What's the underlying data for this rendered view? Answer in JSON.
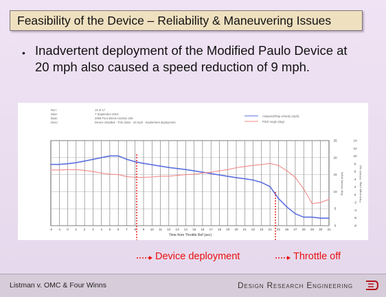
{
  "slide": {
    "title": "Feasibility of the Device – Reliability & Maneuvering Issues",
    "bullet": "Inadvertent deployment of the Modified Paulo Device at 20 mph also caused a speed reduction of 9 mph.",
    "bullet_icon": "bullet-dot"
  },
  "chart_header": {
    "labels": [
      "Run:",
      "Date:",
      "Boat:",
      "Desc:"
    ],
    "values": [
      "19 of 17",
      "7 September 2010",
      "2008 Four Winns Horizon 190",
      "Device installed - Trim down - 20 mph - Inadvertent deployment"
    ],
    "legend": [
      "Airspeed/Ship velocity (mph)",
      "Pitch Angle (deg)"
    ]
  },
  "chart_data": {
    "type": "line",
    "xlabel": "Time from Throttle Ref (sec)",
    "ylabel": "Ship Velocity (mph)",
    "y2label": "Pitch Angle (deg, +DOWN Up)",
    "x_ticks": [
      "-2",
      "-1",
      "0",
      "1",
      "2",
      "3",
      "4",
      "5",
      "6",
      "7",
      "8",
      "9",
      "10",
      "11",
      "12",
      "13",
      "14",
      "15",
      "16",
      "17",
      "18",
      "19",
      "20",
      "21",
      "22",
      "23",
      "24",
      "25",
      "26",
      "27",
      "28",
      "29",
      "30",
      "31"
    ],
    "xlim": [
      -2,
      31
    ],
    "ylim": [
      0,
      25
    ],
    "y_ticks": [
      "0",
      "5",
      "10",
      "15",
      "20",
      "25"
    ],
    "y2lim": [
      -8,
      14
    ],
    "y2_ticks": [
      "-8",
      "-6",
      "-4",
      "-2",
      "0",
      "2",
      "4",
      "6",
      "8",
      "10",
      "12",
      "14"
    ],
    "grid": true,
    "series": [
      {
        "name": "Airspeed/Ship velocity (mph)",
        "axis": "left",
        "color": "#5b6fe0",
        "x": [
          -2,
          -1,
          0,
          1,
          2,
          3,
          4,
          5,
          6,
          7,
          8,
          9,
          10,
          11,
          12,
          13,
          14,
          15,
          16,
          17,
          18,
          19,
          20,
          21,
          22,
          23,
          24,
          25,
          26,
          27,
          28,
          29,
          30,
          31
        ],
        "y": [
          18,
          18,
          18.2,
          18.5,
          19,
          19.5,
          20,
          20.5,
          20.5,
          19.5,
          18.8,
          18.3,
          17.9,
          17.5,
          17.1,
          16.8,
          16.5,
          16.1,
          15.7,
          15.3,
          14.9,
          14.5,
          14.1,
          13.8,
          13.4,
          12.7,
          11.5,
          8,
          5.5,
          3.5,
          2.5,
          2.5,
          2.2,
          2.2
        ]
      },
      {
        "name": "Pitch Angle (deg)",
        "axis": "right",
        "color": "#f08a8a",
        "x": [
          -2,
          -1,
          0,
          1,
          2,
          3,
          4,
          5,
          6,
          7,
          8,
          9,
          10,
          11,
          12,
          13,
          14,
          15,
          16,
          17,
          18,
          19,
          20,
          21,
          22,
          23,
          24,
          25,
          26,
          27,
          28,
          29,
          30,
          31
        ],
        "y": [
          6.4,
          6.4,
          6.5,
          6.5,
          6.3,
          6,
          5.6,
          5.3,
          5.2,
          4.7,
          4.5,
          4.5,
          4.6,
          4.8,
          4.8,
          5,
          5.2,
          5.3,
          5.6,
          5.8,
          6.2,
          6.5,
          7,
          7.3,
          7.6,
          7.8,
          8.1,
          7.6,
          6.2,
          4.5,
          1.5,
          -2.3,
          -2,
          -1.2
        ]
      }
    ],
    "annotations": [
      "Device deployment",
      "Throttle off"
    ]
  },
  "footer": {
    "left": "Listman v. OMC & Four Winns",
    "right": "Design Research Engineering",
    "logo_icon": "dre-logo-icon"
  },
  "colors": {
    "title_bg": "#efe0c0",
    "slide_bg": "#e9dcef",
    "annotation": "#e81010",
    "footer_bg": "#d7ccd9"
  }
}
